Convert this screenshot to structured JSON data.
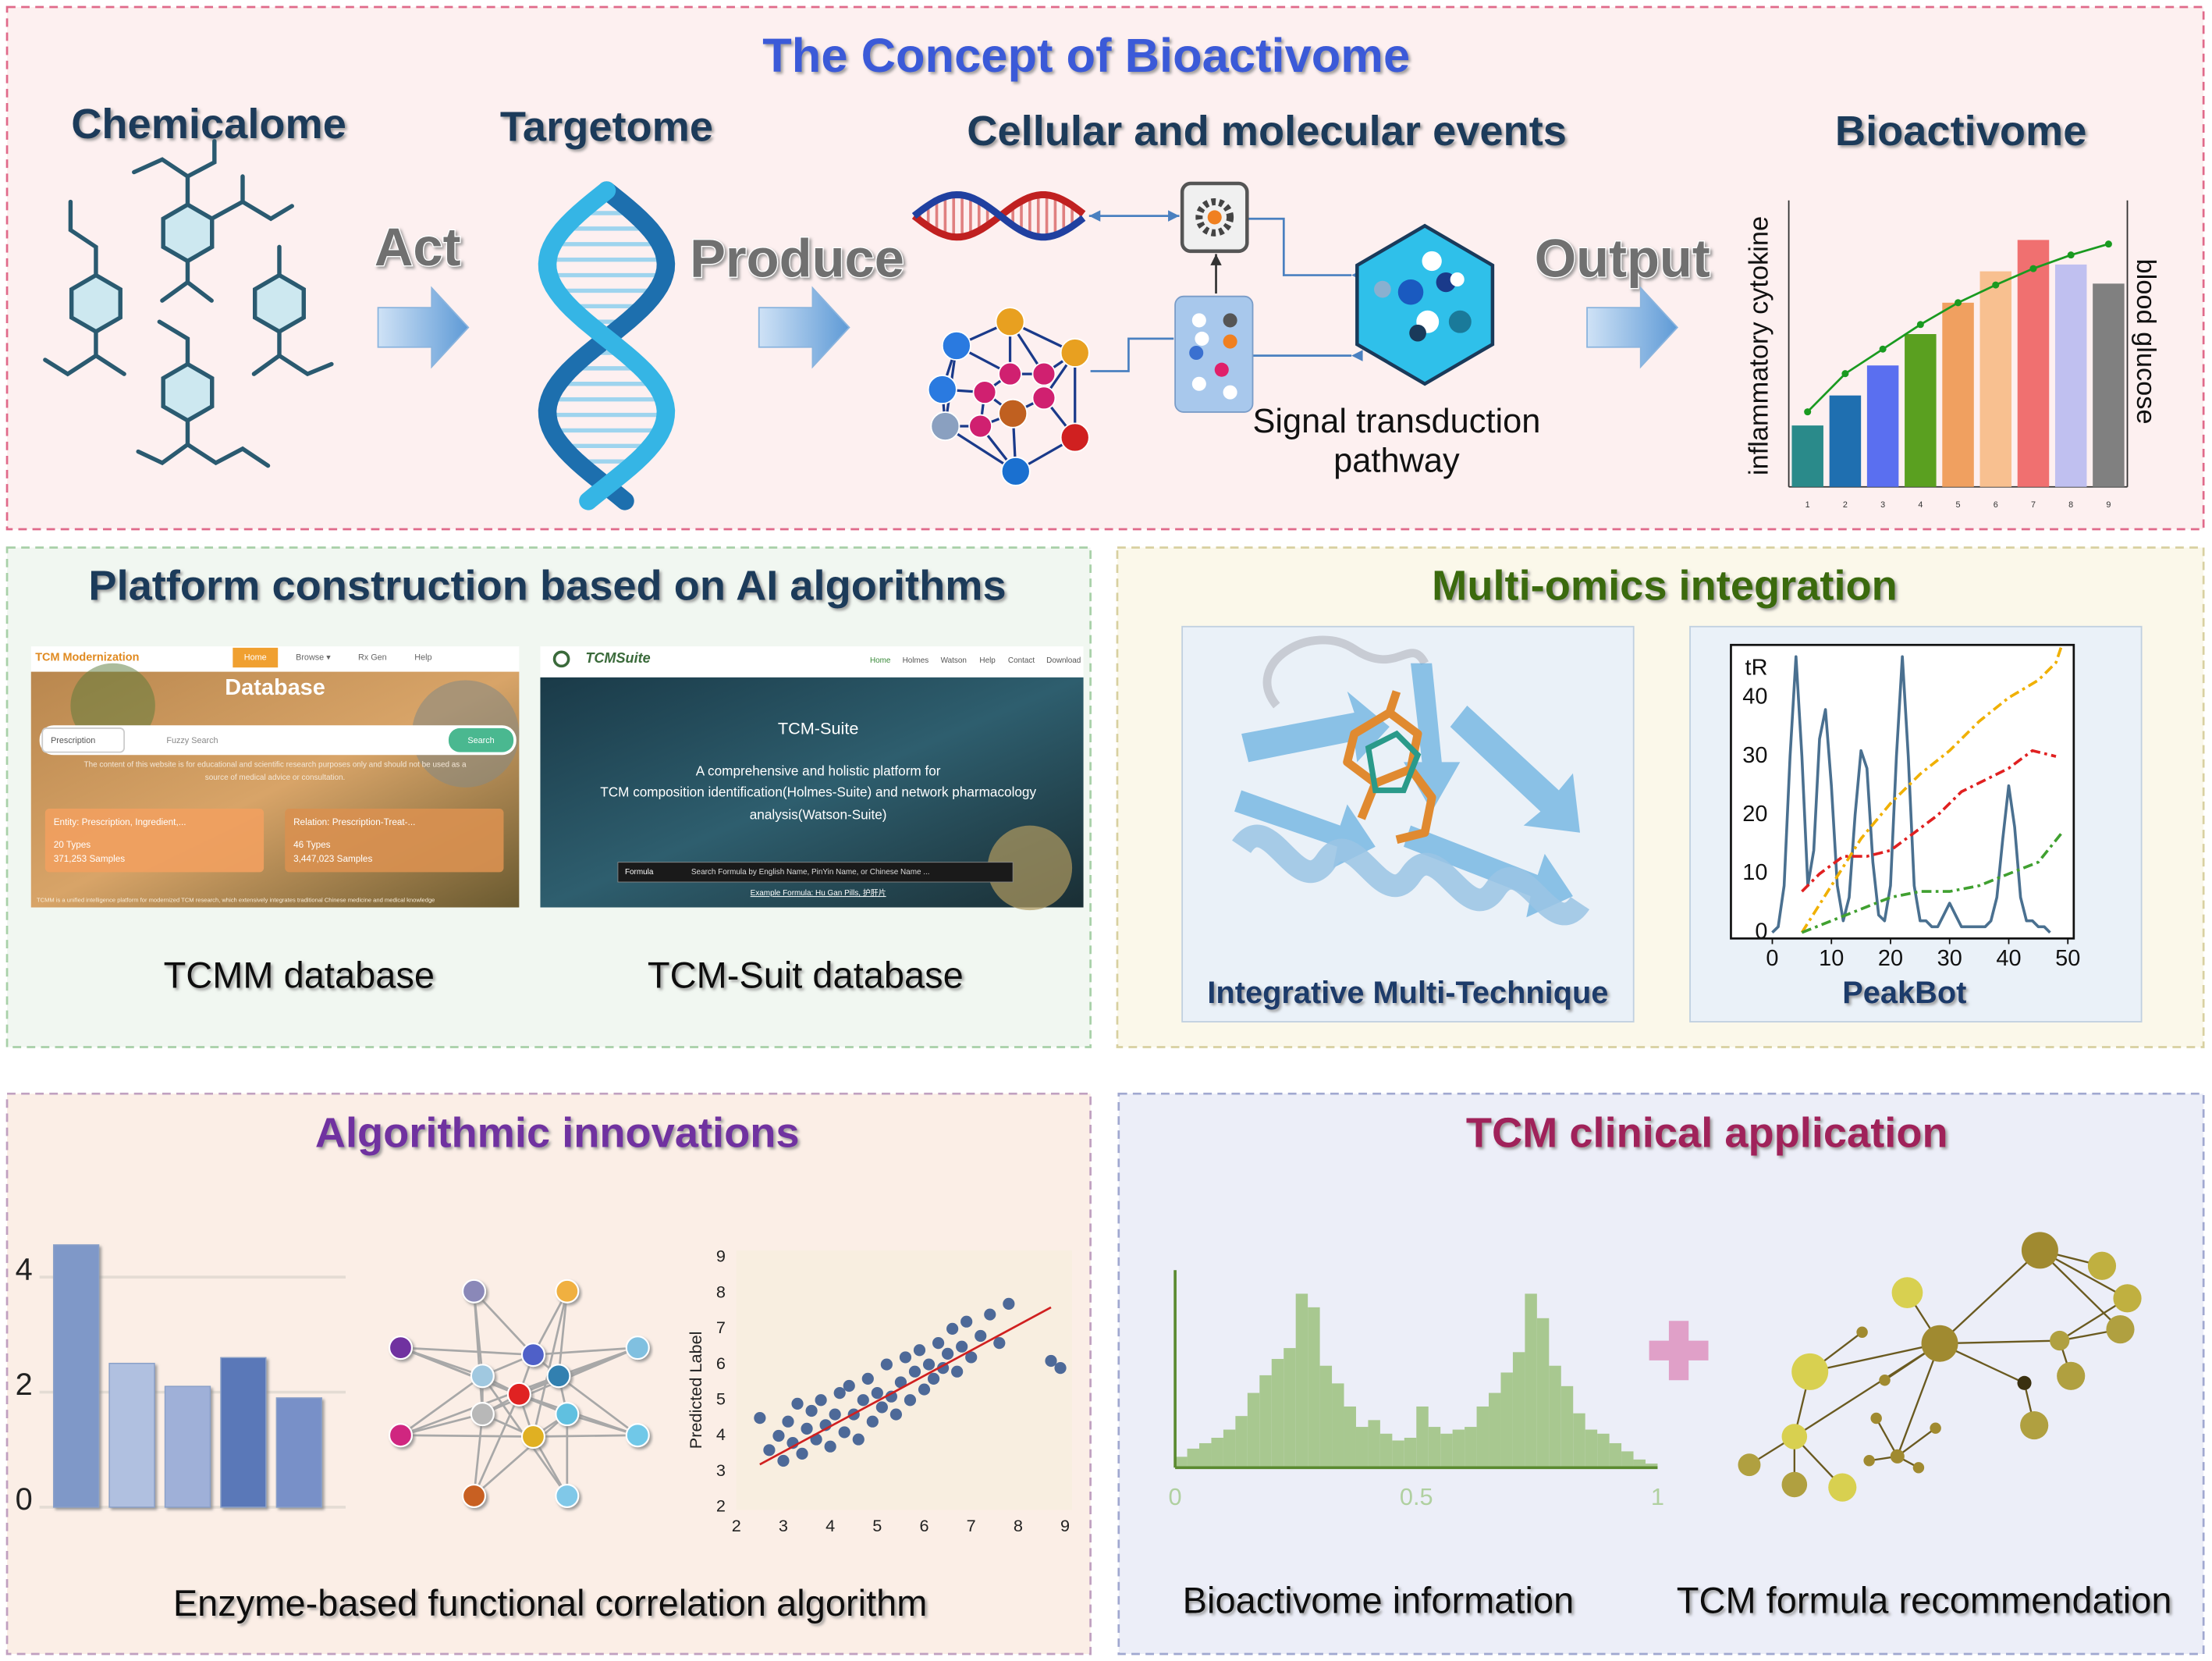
{
  "concept": {
    "title": "The Concept of Bioactivome",
    "stages": [
      "Chemicalome",
      "Targetome",
      "Cellular and molecular events",
      "Bioactivome"
    ],
    "arrows": [
      "Act",
      "Produce",
      "Output"
    ],
    "pathway": [
      "Signal transduction",
      "pathway"
    ],
    "chart": {
      "type": "bar",
      "y_label": "inflammatory cytokine",
      "y2_label": "blood glucose",
      "categories": [
        "1",
        "2",
        "3",
        "4",
        "5",
        "6",
        "7",
        "8",
        "9"
      ],
      "ylim": [
        0,
        210
      ],
      "bars": {
        "values": [
          45,
          67,
          89,
          112,
          135,
          158,
          181,
          163,
          149
        ],
        "colors": [
          "#2a8a8a",
          "#1f6fb0",
          "#5a6ff0",
          "#5aa020",
          "#f0a060",
          "#f8c090",
          "#f07070",
          "#c0c0f0",
          "#808080"
        ]
      },
      "line": {
        "values": [
          55,
          83,
          101,
          119,
          135,
          148,
          160,
          170,
          178
        ],
        "color": "#1a9a20"
      }
    }
  },
  "platform": {
    "title": "Platform construction based on AI algorithms",
    "tcmm": {
      "brand": "TCM Modernization",
      "nav": [
        "Home",
        "Browse ▾",
        "Rx Gen",
        "Help"
      ],
      "heading": "Database",
      "select": "Prescription",
      "search_placeholder": "Fuzzy Search",
      "search_button": "Search",
      "disclaimer": [
        "The content of this website is for educational and scientific research purposes only and should not be used as a",
        "source of medical advice or consultation."
      ],
      "cards": [
        {
          "title": "Entity: Prescription, Ingredient,...",
          "types": "20 Types",
          "samples": "371,253 Samples"
        },
        {
          "title": "Relation: Prescription-Treat-...",
          "types": "46 Types",
          "samples": "3,447,023 Samples"
        }
      ],
      "footer": "TCMM is a unified intelligence platform for modernized TCM research, which extensively integrates traditional Chinese medicine and medical knowledge"
    },
    "tcmsuite": {
      "brand": "TCMSuite",
      "nav": [
        "Home",
        "Holmes",
        "Watson",
        "Help",
        "Contact",
        "Download"
      ],
      "heading": "TCM-Suite",
      "description": [
        "A comprehensive and holistic platform for",
        "TCM composition identification(Holmes-Suite) and network pharmacology",
        "analysis(Watson-Suite)"
      ],
      "select": "Formula",
      "search_placeholder": "Search Formula by English Name, PinYin Name, or Chinese Name ...",
      "example": "Example Formula: Hu Gan Pills, 护肝片"
    },
    "captions": [
      "TCMM database",
      "TCM-Suit database"
    ]
  },
  "omics": {
    "title": "Multi-omics integration",
    "protein_caption": "Integrative Multi-Technique",
    "peakbot": {
      "type": "line",
      "caption": "PeakBot",
      "y_label": "tR",
      "xlim": [
        -7,
        51
      ],
      "ylim": [
        -1,
        49
      ],
      "xticks": [
        0,
        10,
        20,
        30,
        40,
        50
      ],
      "yticks": [
        0,
        10,
        20,
        30,
        40
      ],
      "chromatogram": {
        "color": "#4a7090",
        "x": [
          0,
          1,
          2,
          3,
          4,
          5,
          6,
          7,
          8,
          9,
          10,
          11,
          12,
          13,
          14,
          15,
          16,
          17,
          18,
          19,
          20,
          21,
          22,
          23,
          24,
          25,
          26,
          27,
          28,
          29,
          30,
          31,
          32,
          33,
          34,
          35,
          36,
          37,
          38,
          39,
          40,
          41,
          42,
          43,
          44,
          45,
          46,
          47
        ],
        "values": [
          0,
          1,
          8,
          30,
          47,
          30,
          8,
          14,
          33,
          38,
          25,
          8,
          2,
          6,
          20,
          31,
          28,
          12,
          3,
          2,
          8,
          30,
          47,
          30,
          8,
          2,
          2,
          1,
          1,
          3,
          5,
          3,
          1,
          1,
          1,
          1,
          1,
          2,
          6,
          16,
          25,
          18,
          6,
          2,
          2,
          1,
          1,
          0
        ]
      },
      "series": [
        {
          "color": "#f0b000",
          "x": [
            5,
            10,
            15,
            20,
            25,
            30,
            35,
            40,
            45,
            48,
            49
          ],
          "values": [
            0,
            8,
            16,
            22,
            27,
            31,
            36,
            40,
            43,
            46,
            49
          ]
        },
        {
          "color": "#e02020",
          "x": [
            5,
            8,
            12,
            16,
            20,
            24,
            28,
            32,
            36,
            40,
            44,
            48
          ],
          "values": [
            7,
            10,
            13,
            13,
            14,
            17,
            20,
            24,
            26,
            28,
            31,
            30
          ]
        },
        {
          "color": "#40a030",
          "x": [
            5,
            10,
            15,
            20,
            25,
            30,
            35,
            40,
            45,
            49
          ],
          "values": [
            0,
            2,
            4,
            6,
            7,
            7,
            8,
            10,
            12,
            17
          ]
        }
      ]
    }
  },
  "algorithms": {
    "title": "Algorithmic innovations",
    "caption": "Enzyme-based functional correlation algorithm",
    "bar_chart": {
      "type": "bar",
      "values": [
        4.56,
        2.5,
        2.1,
        2.6,
        1.9
      ],
      "colors": [
        "#7f98c8",
        "#b0c0e0",
        "#9fb0d8",
        "#5a78b8",
        "#7890c8"
      ],
      "ylim": [
        0,
        4.6
      ],
      "yticks": [
        0,
        2,
        4
      ]
    },
    "scatter": {
      "type": "scatter",
      "y_label": "Predicted Label",
      "color": "#3a5a90",
      "xlim": [
        2,
        9
      ],
      "ylim": [
        2,
        9
      ],
      "xticks": [
        2,
        3,
        4,
        5,
        6,
        7,
        8,
        9
      ],
      "yticks": [
        2,
        3,
        4,
        5,
        6,
        7,
        8,
        9
      ],
      "x": [
        2.5,
        2.7,
        2.9,
        3.0,
        3.1,
        3.2,
        3.3,
        3.4,
        3.5,
        3.6,
        3.7,
        3.8,
        3.9,
        4.0,
        4.1,
        4.2,
        4.3,
        4.4,
        4.5,
        4.6,
        4.7,
        4.8,
        4.9,
        5.0,
        5.1,
        5.2,
        5.3,
        5.4,
        5.5,
        5.6,
        5.7,
        5.8,
        5.9,
        6.0,
        6.1,
        6.2,
        6.3,
        6.4,
        6.5,
        6.6,
        6.7,
        6.8,
        6.9,
        7.0,
        7.2,
        7.4,
        7.6,
        7.8,
        8.7,
        8.9
      ],
      "values": [
        4.5,
        3.6,
        4.0,
        3.3,
        4.4,
        3.8,
        4.9,
        3.5,
        4.2,
        4.7,
        3.9,
        5.0,
        4.3,
        3.7,
        4.6,
        5.2,
        4.1,
        5.4,
        4.6,
        3.9,
        5.0,
        5.6,
        4.4,
        5.2,
        4.8,
        6.0,
        5.1,
        4.6,
        5.5,
        6.2,
        5.0,
        5.8,
        6.4,
        5.3,
        6.0,
        5.6,
        6.6,
        5.9,
        6.3,
        7.0,
        5.8,
        6.5,
        7.2,
        6.2,
        6.8,
        7.4,
        6.6,
        7.7,
        6.1,
        5.9
      ],
      "fit": {
        "color": "#d02020",
        "x": [
          2.5,
          8.7
        ],
        "values": [
          3.2,
          7.6
        ]
      }
    }
  },
  "clinical": {
    "title": "TCM clinical application",
    "captions": [
      "Bioactivome information",
      "TCM formula recommendation"
    ],
    "histogram": {
      "type": "histogram",
      "color": "#a8c890",
      "xlim": [
        0,
        1
      ],
      "ylim": [
        0,
        135
      ],
      "xticks": [
        0,
        0.5,
        1
      ],
      "bins": [
        0,
        0.025,
        0.05,
        0.075,
        0.1,
        0.125,
        0.15,
        0.175,
        0.2,
        0.225,
        0.25,
        0.275,
        0.3,
        0.325,
        0.35,
        0.375,
        0.4,
        0.425,
        0.45,
        0.475,
        0.5,
        0.525,
        0.55,
        0.575,
        0.6,
        0.625,
        0.65,
        0.675,
        0.7,
        0.725,
        0.75,
        0.775,
        0.8,
        0.825,
        0.85,
        0.875,
        0.9,
        0.925,
        0.95,
        0.975,
        1
      ],
      "values": [
        8,
        14,
        18,
        22,
        28,
        38,
        55,
        68,
        80,
        88,
        128,
        118,
        75,
        62,
        45,
        30,
        35,
        25,
        20,
        22,
        45,
        30,
        25,
        28,
        30,
        45,
        55,
        70,
        85,
        128,
        110,
        75,
        60,
        40,
        28,
        25,
        18,
        12,
        6,
        3
      ]
    }
  }
}
